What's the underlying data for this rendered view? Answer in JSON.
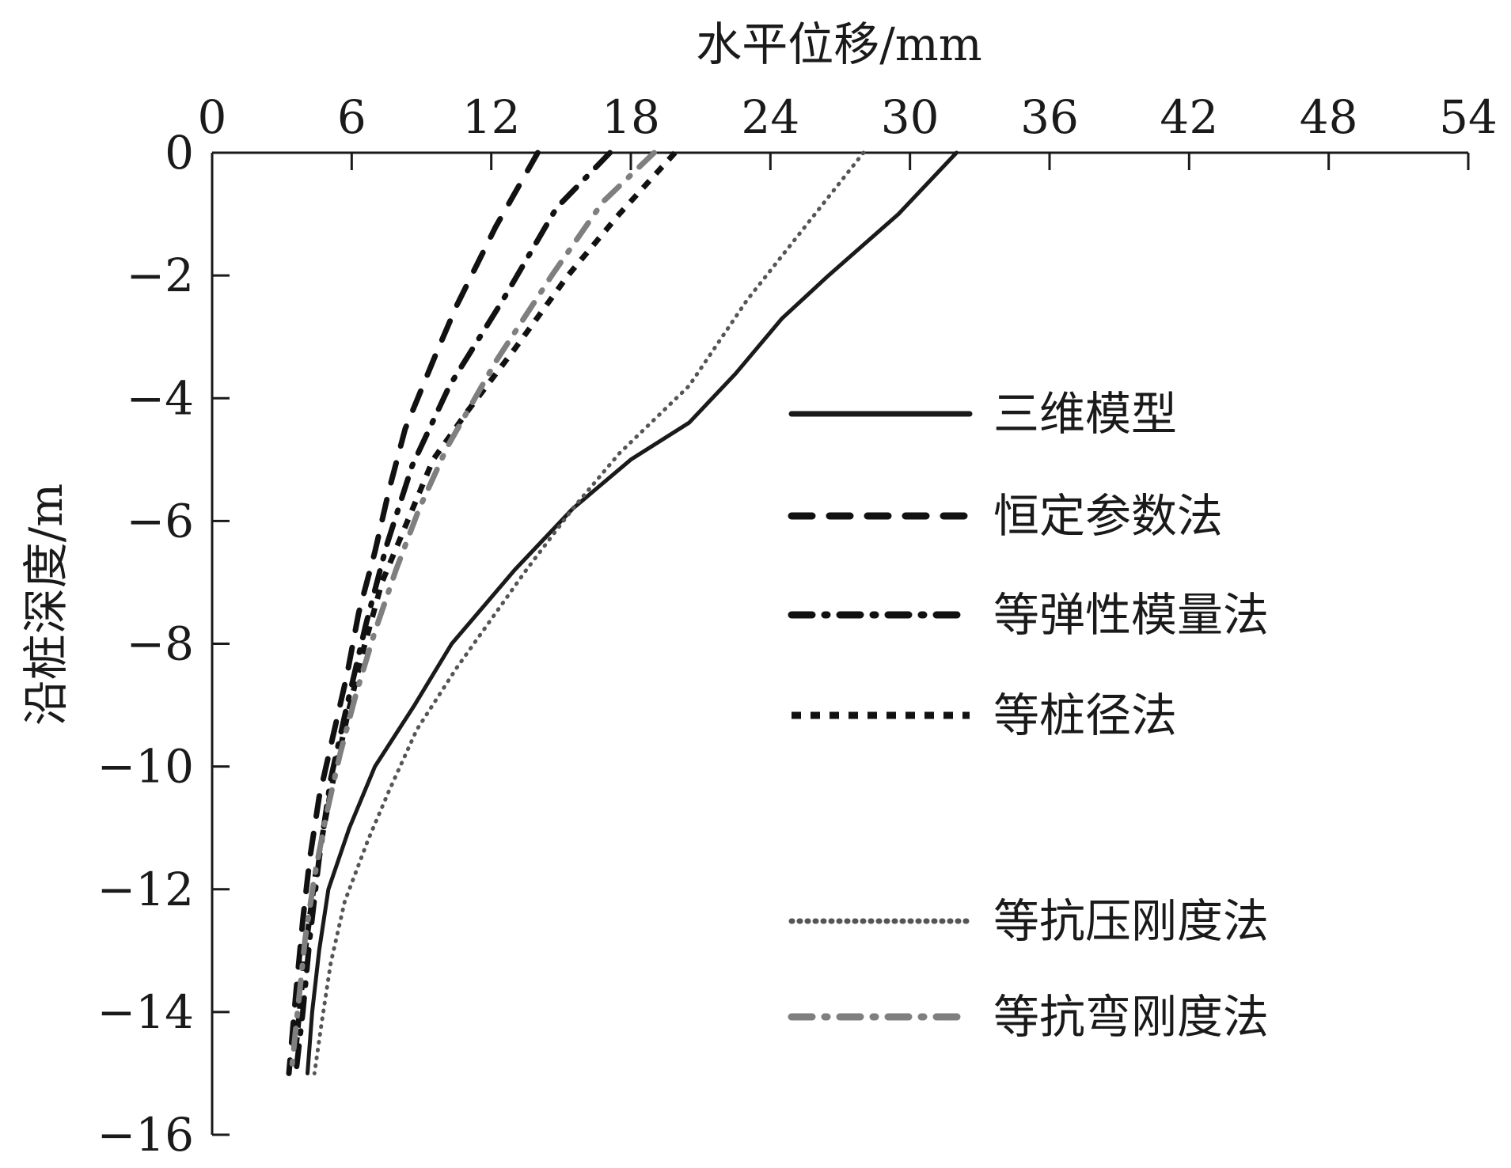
{
  "chart_data": {
    "type": "line",
    "xlabel": "水平位移/mm",
    "ylabel": "沿桩深度/m",
    "xlim": [
      0,
      54
    ],
    "ylim": [
      -16,
      0
    ],
    "xticks": [
      0,
      6,
      12,
      18,
      24,
      30,
      36,
      42,
      48,
      54
    ],
    "yticks": [
      0,
      -2,
      -4,
      -6,
      -8,
      -10,
      -12,
      -14,
      -16
    ],
    "x_axis_position": "top",
    "grid": false,
    "legend_position": "right",
    "series": [
      {
        "name": "三维模型",
        "style": "solid",
        "color": "#1a1a1a",
        "x": [
          32.0,
          29.5,
          26.5,
          24.5,
          22.5,
          20.5,
          18.0,
          15.5,
          13.0,
          10.3,
          8.7,
          7.0,
          5.9,
          5.0,
          4.6,
          4.3,
          4.1
        ],
        "y": [
          0,
          -1,
          -2,
          -2.7,
          -3.6,
          -4.4,
          -5.0,
          -5.8,
          -6.8,
          -8.0,
          -9.0,
          -10.0,
          -11.0,
          -12.0,
          -13.0,
          -14.0,
          -15.0
        ]
      },
      {
        "name": "恒定参数法",
        "style": "dash",
        "color": "#111111",
        "x": [
          14.0,
          12.2,
          10.5,
          9.6,
          8.3,
          7.6,
          7.0,
          6.3,
          5.8,
          5.2,
          4.6,
          4.2,
          3.9,
          3.6,
          3.3
        ],
        "y": [
          0,
          -1.2,
          -2.5,
          -3.3,
          -4.5,
          -5.5,
          -6.5,
          -7.5,
          -8.5,
          -9.5,
          -10.5,
          -11.5,
          -12.5,
          -13.7,
          -15.0
        ]
      },
      {
        "name": "等弹性模量法",
        "style": "dashdot",
        "color": "#111111",
        "x": [
          17.1,
          14.8,
          12.5,
          10.2,
          8.6,
          7.5,
          6.6,
          5.8,
          5.1,
          4.6,
          4.2,
          3.9,
          3.6
        ],
        "y": [
          0,
          -0.9,
          -2.4,
          -3.8,
          -5.1,
          -6.4,
          -7.7,
          -9.0,
          -10.2,
          -11.5,
          -12.8,
          -14.0,
          -15.0
        ]
      },
      {
        "name": "等桩径法",
        "style": "shortdash",
        "color": "#111111",
        "x": [
          19.9,
          17.5,
          15.3,
          13.0,
          11.0,
          9.5,
          8.4,
          7.3,
          6.5,
          5.8,
          5.1,
          4.5,
          4.0,
          3.6
        ],
        "y": [
          0,
          -1.0,
          -2.0,
          -3.2,
          -4.2,
          -5.0,
          -6.0,
          -7.0,
          -8.1,
          -9.2,
          -10.4,
          -11.6,
          -13.0,
          -14.6
        ]
      },
      {
        "name": "等抗压刚度法",
        "style": "dot",
        "color": "#555555",
        "x": [
          28.0,
          25.5,
          23.0,
          20.5,
          17.5,
          15.5,
          13.5,
          12.0,
          10.5,
          8.8,
          7.6,
          6.7,
          5.7,
          5.1,
          4.7,
          4.4
        ],
        "y": [
          0,
          -1.2,
          -2.4,
          -3.8,
          -4.9,
          -5.8,
          -6.8,
          -7.6,
          -8.4,
          -9.4,
          -10.4,
          -11.2,
          -12.2,
          -13.2,
          -14.2,
          -15.0
        ]
      },
      {
        "name": "等抗弯刚度法",
        "style": "dashdot",
        "color": "#7f7f7f",
        "x": [
          19.0,
          16.8,
          14.6,
          12.2,
          10.1,
          8.9,
          7.9,
          7.0,
          6.2,
          5.5,
          4.9,
          4.4,
          4.0,
          3.7,
          3.4
        ],
        "y": [
          0,
          -0.8,
          -2.0,
          -3.4,
          -4.8,
          -5.8,
          -6.8,
          -7.8,
          -8.8,
          -9.8,
          -10.8,
          -11.8,
          -12.8,
          -13.9,
          -15.0
        ]
      }
    ]
  }
}
